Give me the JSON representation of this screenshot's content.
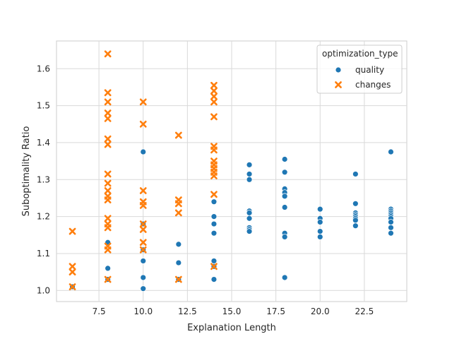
{
  "chart_data": {
    "type": "scatter",
    "title": "",
    "xlabel": "Explanation Length",
    "ylabel": "Suboptimality Ratio",
    "xlim": [
      5.1,
      24.9
    ],
    "ylim": [
      0.97,
      1.675
    ],
    "xticks": [
      7.5,
      10.0,
      12.5,
      15.0,
      17.5,
      20.0,
      22.5
    ],
    "xtick_labels": [
      "7.5",
      "10.0",
      "12.5",
      "15.0",
      "17.5",
      "20.0",
      "22.5"
    ],
    "yticks": [
      1.0,
      1.1,
      1.2,
      1.3,
      1.4,
      1.5,
      1.6
    ],
    "ytick_labels": [
      "1.0",
      "1.1",
      "1.2",
      "1.3",
      "1.4",
      "1.5",
      "1.6"
    ],
    "grid": true,
    "legend": {
      "title": "optimization_type",
      "position": "top-right"
    },
    "series": [
      {
        "name": "quality",
        "marker": "circle",
        "color": "#1f77b4",
        "points": [
          [
            6,
            1.01
          ],
          [
            8,
            1.13
          ],
          [
            8,
            1.06
          ],
          [
            8,
            1.03
          ],
          [
            10,
            1.375
          ],
          [
            10,
            1.18
          ],
          [
            10,
            1.11
          ],
          [
            10,
            1.08
          ],
          [
            10,
            1.035
          ],
          [
            10,
            1.005
          ],
          [
            12,
            1.125
          ],
          [
            12,
            1.075
          ],
          [
            12,
            1.03
          ],
          [
            14,
            1.24
          ],
          [
            14,
            1.2
          ],
          [
            14,
            1.18
          ],
          [
            14,
            1.155
          ],
          [
            14,
            1.08
          ],
          [
            14,
            1.065
          ],
          [
            14,
            1.03
          ],
          [
            16,
            1.34
          ],
          [
            16,
            1.315
          ],
          [
            16,
            1.3
          ],
          [
            16,
            1.215
          ],
          [
            16,
            1.21
          ],
          [
            16,
            1.195
          ],
          [
            16,
            1.17
          ],
          [
            16,
            1.165
          ],
          [
            16,
            1.16
          ],
          [
            18,
            1.355
          ],
          [
            18,
            1.32
          ],
          [
            18,
            1.275
          ],
          [
            18,
            1.265
          ],
          [
            18,
            1.255
          ],
          [
            18,
            1.225
          ],
          [
            18,
            1.155
          ],
          [
            18,
            1.145
          ],
          [
            18,
            1.035
          ],
          [
            20,
            1.22
          ],
          [
            20,
            1.195
          ],
          [
            20,
            1.185
          ],
          [
            20,
            1.16
          ],
          [
            20,
            1.145
          ],
          [
            22,
            1.315
          ],
          [
            22,
            1.235
          ],
          [
            22,
            1.21
          ],
          [
            22,
            1.205
          ],
          [
            22,
            1.2
          ],
          [
            22,
            1.195
          ],
          [
            22,
            1.19
          ],
          [
            22,
            1.175
          ],
          [
            24,
            1.375
          ],
          [
            24,
            1.22
          ],
          [
            24,
            1.215
          ],
          [
            24,
            1.21
          ],
          [
            24,
            1.205
          ],
          [
            24,
            1.2
          ],
          [
            24,
            1.195
          ],
          [
            24,
            1.185
          ],
          [
            24,
            1.17
          ],
          [
            24,
            1.155
          ]
        ]
      },
      {
        "name": "changes",
        "marker": "x",
        "color": "#ff7f0e",
        "points": [
          [
            6,
            1.16
          ],
          [
            6,
            1.065
          ],
          [
            6,
            1.05
          ],
          [
            6,
            1.01
          ],
          [
            8,
            1.64
          ],
          [
            8,
            1.535
          ],
          [
            8,
            1.51
          ],
          [
            8,
            1.48
          ],
          [
            8,
            1.465
          ],
          [
            8,
            1.41
          ],
          [
            8,
            1.395
          ],
          [
            8,
            1.315
          ],
          [
            8,
            1.29
          ],
          [
            8,
            1.27
          ],
          [
            8,
            1.255
          ],
          [
            8,
            1.245
          ],
          [
            8,
            1.195
          ],
          [
            8,
            1.18
          ],
          [
            8,
            1.17
          ],
          [
            8,
            1.12
          ],
          [
            8,
            1.11
          ],
          [
            8,
            1.03
          ],
          [
            10,
            1.51
          ],
          [
            10,
            1.45
          ],
          [
            10,
            1.27
          ],
          [
            10,
            1.24
          ],
          [
            10,
            1.23
          ],
          [
            10,
            1.18
          ],
          [
            10,
            1.165
          ],
          [
            10,
            1.13
          ],
          [
            10,
            1.11
          ],
          [
            12,
            1.42
          ],
          [
            12,
            1.245
          ],
          [
            12,
            1.235
          ],
          [
            12,
            1.21
          ],
          [
            12,
            1.03
          ],
          [
            14,
            1.555
          ],
          [
            14,
            1.54
          ],
          [
            14,
            1.525
          ],
          [
            14,
            1.51
          ],
          [
            14,
            1.47
          ],
          [
            14,
            1.39
          ],
          [
            14,
            1.38
          ],
          [
            14,
            1.35
          ],
          [
            14,
            1.34
          ],
          [
            14,
            1.33
          ],
          [
            14,
            1.32
          ],
          [
            14,
            1.31
          ],
          [
            14,
            1.26
          ],
          [
            14,
            1.065
          ]
        ]
      }
    ]
  }
}
